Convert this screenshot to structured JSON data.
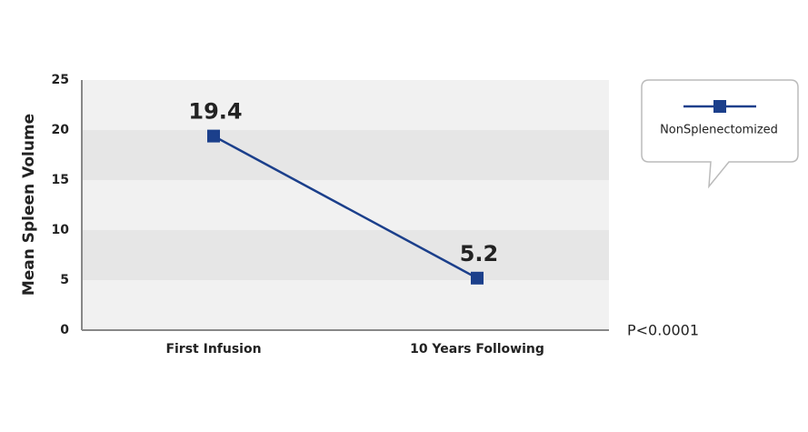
{
  "chart_data": {
    "type": "line",
    "y_label": "Mean Spleen Volume",
    "categories": [
      "First Infusion",
      "10 Years Following"
    ],
    "series": [
      {
        "name": "NonSplenectomized",
        "color": "#1b3f8b",
        "values": [
          19.4,
          5.2
        ]
      }
    ],
    "ylim": [
      0,
      25
    ],
    "yticks": [
      0,
      5,
      10,
      15,
      20,
      25
    ],
    "grid": true,
    "annotation": "P<0.0001",
    "legend": "right"
  }
}
